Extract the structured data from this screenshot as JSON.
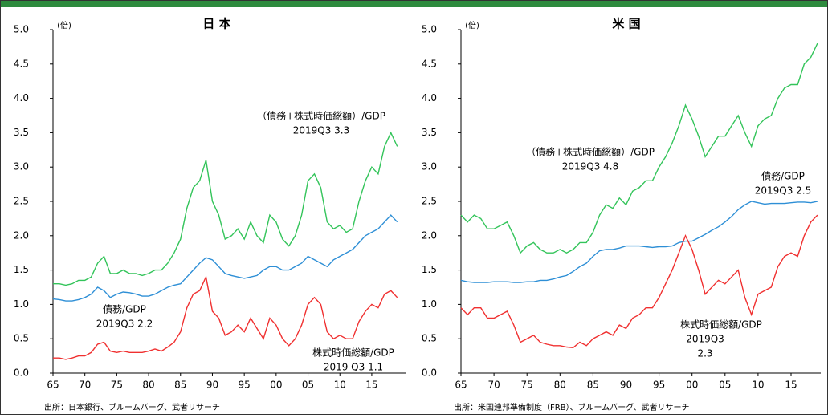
{
  "chart_data": [
    {
      "type": "line",
      "title": "日 本",
      "y_unit": "(倍)",
      "source": "出所：日本銀行、ブルームバーグ、武者リサーチ",
      "xlim": [
        1965,
        2020.3
      ],
      "ylim": [
        0,
        5
      ],
      "xticks": [
        {
          "value": 1965,
          "label": "65"
        },
        {
          "value": 1970,
          "label": "70"
        },
        {
          "value": 1975,
          "label": "75"
        },
        {
          "value": 1980,
          "label": "80"
        },
        {
          "value": 1985,
          "label": "85"
        },
        {
          "value": 1990,
          "label": "90"
        },
        {
          "value": 1995,
          "label": "95"
        },
        {
          "value": 2000,
          "label": "00"
        },
        {
          "value": 2005,
          "label": "05"
        },
        {
          "value": 2010,
          "label": "10"
        },
        {
          "value": 2015,
          "label": "15"
        }
      ],
      "yticks": [
        {
          "value": 0,
          "label": "0.0"
        },
        0.5,
        {
          "value": 1,
          "label": "1.0"
        },
        1.5,
        {
          "value": 2,
          "label": "2.0"
        },
        2.5,
        {
          "value": 3,
          "label": "3.0"
        },
        3.5,
        {
          "value": 4,
          "label": "4.0"
        },
        4.5,
        {
          "value": 5,
          "label": "5.0"
        }
      ],
      "x": [
        1965,
        1966,
        1967,
        1968,
        1969,
        1970,
        1971,
        1972,
        1973,
        1974,
        1975,
        1976,
        1977,
        1978,
        1979,
        1980,
        1981,
        1982,
        1983,
        1984,
        1985,
        1986,
        1987,
        1988,
        1989,
        1990,
        1991,
        1992,
        1993,
        1994,
        1995,
        1996,
        1997,
        1998,
        1999,
        2000,
        2001,
        2002,
        2003,
        2004,
        2005,
        2006,
        2007,
        2008,
        2009,
        2010,
        2011,
        2012,
        2013,
        2014,
        2015,
        2016,
        2017,
        2018,
        2019
      ],
      "series": [
        {
          "name": "（債務+株式時価総額）/GDP",
          "annotation": [
            "2019Q3  3.3"
          ],
          "color": "#33c45a",
          "values": [
            1.3,
            1.3,
            1.28,
            1.3,
            1.35,
            1.35,
            1.4,
            1.6,
            1.7,
            1.45,
            1.45,
            1.5,
            1.45,
            1.45,
            1.42,
            1.45,
            1.5,
            1.5,
            1.6,
            1.75,
            1.95,
            2.4,
            2.7,
            2.8,
            3.1,
            2.5,
            2.3,
            1.95,
            2.0,
            2.1,
            1.95,
            2.2,
            2.0,
            1.9,
            2.3,
            2.2,
            1.95,
            1.85,
            2.0,
            2.3,
            2.8,
            2.9,
            2.7,
            2.2,
            2.1,
            2.15,
            2.05,
            2.1,
            2.5,
            2.8,
            3.0,
            2.9,
            3.3,
            3.5,
            3.3
          ]
        },
        {
          "name": "債務/GDP",
          "annotation": [
            "2019Q3   2.2"
          ],
          "color": "#2e8fd6",
          "values": [
            1.08,
            1.07,
            1.05,
            1.05,
            1.07,
            1.1,
            1.15,
            1.25,
            1.2,
            1.1,
            1.15,
            1.18,
            1.17,
            1.15,
            1.12,
            1.12,
            1.15,
            1.2,
            1.25,
            1.28,
            1.3,
            1.4,
            1.5,
            1.6,
            1.68,
            1.65,
            1.55,
            1.45,
            1.42,
            1.4,
            1.38,
            1.4,
            1.42,
            1.5,
            1.55,
            1.55,
            1.5,
            1.5,
            1.55,
            1.6,
            1.7,
            1.65,
            1.6,
            1.55,
            1.65,
            1.7,
            1.75,
            1.8,
            1.9,
            2.0,
            2.05,
            2.1,
            2.2,
            2.3,
            2.2
          ]
        },
        {
          "name": "株式時価総額/GDP",
          "annotation": [
            "2019  Q3   1.1"
          ],
          "color": "#f03030",
          "values": [
            0.22,
            0.22,
            0.2,
            0.22,
            0.25,
            0.25,
            0.3,
            0.42,
            0.45,
            0.32,
            0.3,
            0.32,
            0.3,
            0.3,
            0.3,
            0.32,
            0.35,
            0.32,
            0.38,
            0.45,
            0.6,
            0.95,
            1.15,
            1.2,
            1.4,
            0.9,
            0.8,
            0.55,
            0.6,
            0.7,
            0.6,
            0.8,
            0.65,
            0.5,
            0.8,
            0.7,
            0.5,
            0.4,
            0.5,
            0.7,
            1.0,
            1.1,
            1.0,
            0.6,
            0.5,
            0.55,
            0.5,
            0.5,
            0.75,
            0.9,
            1.0,
            0.95,
            1.15,
            1.2,
            1.1
          ]
        }
      ]
    },
    {
      "type": "line",
      "title": "米 国",
      "y_unit": "(倍)",
      "source": "出所：米国連邦準備制度（FRB）、ブルームバーグ、武者リサーチ",
      "xlim": [
        1965,
        2019.5
      ],
      "ylim": [
        0,
        5
      ],
      "xticks": [
        {
          "value": 1965,
          "label": "65"
        },
        {
          "value": 1970,
          "label": "70"
        },
        {
          "value": 1975,
          "label": "75"
        },
        {
          "value": 1980,
          "label": "80"
        },
        {
          "value": 1985,
          "label": "85"
        },
        {
          "value": 1990,
          "label": "90"
        },
        {
          "value": 1995,
          "label": "95"
        },
        {
          "value": 2000,
          "label": "00"
        },
        {
          "value": 2005,
          "label": "05"
        },
        {
          "value": 2010,
          "label": "10"
        },
        {
          "value": 2015,
          "label": "15"
        }
      ],
      "yticks": [
        {
          "value": 0,
          "label": "0.0"
        },
        0.5,
        {
          "value": 1,
          "label": "1.0"
        },
        1.5,
        {
          "value": 2,
          "label": "2.0"
        },
        2.5,
        {
          "value": 3,
          "label": "3.0"
        },
        3.5,
        {
          "value": 4,
          "label": "4.0"
        },
        4.5,
        {
          "value": 5,
          "label": "5.0"
        }
      ],
      "x": [
        1965,
        1966,
        1967,
        1968,
        1969,
        1970,
        1971,
        1972,
        1973,
        1974,
        1975,
        1976,
        1977,
        1978,
        1979,
        1980,
        1981,
        1982,
        1983,
        1984,
        1985,
        1986,
        1987,
        1988,
        1989,
        1990,
        1991,
        1992,
        1993,
        1994,
        1995,
        1996,
        1997,
        1998,
        1999,
        2000,
        2001,
        2002,
        2003,
        2004,
        2005,
        2006,
        2007,
        2008,
        2009,
        2010,
        2011,
        2012,
        2013,
        2014,
        2015,
        2016,
        2017,
        2018,
        2019
      ],
      "series": [
        {
          "name": "（債務+株式時価総額）/GDP",
          "annotation": [
            "2019Q3  4.8"
          ],
          "color": "#33c45a",
          "values": [
            2.3,
            2.2,
            2.3,
            2.25,
            2.1,
            2.1,
            2.15,
            2.2,
            2.0,
            1.75,
            1.85,
            1.9,
            1.8,
            1.75,
            1.75,
            1.8,
            1.75,
            1.8,
            1.9,
            1.9,
            2.05,
            2.3,
            2.45,
            2.4,
            2.55,
            2.45,
            2.65,
            2.7,
            2.8,
            2.8,
            3.0,
            3.15,
            3.35,
            3.6,
            3.9,
            3.7,
            3.45,
            3.15,
            3.3,
            3.45,
            3.45,
            3.6,
            3.75,
            3.5,
            3.3,
            3.6,
            3.7,
            3.75,
            4.0,
            4.15,
            4.2,
            4.2,
            4.5,
            4.6,
            4.8
          ]
        },
        {
          "name": "債務/GDP",
          "annotation": [
            "2019Q3  2.5"
          ],
          "color": "#2e8fd6",
          "values": [
            1.35,
            1.33,
            1.32,
            1.32,
            1.32,
            1.33,
            1.33,
            1.33,
            1.32,
            1.32,
            1.33,
            1.33,
            1.35,
            1.35,
            1.37,
            1.4,
            1.42,
            1.48,
            1.55,
            1.6,
            1.7,
            1.78,
            1.8,
            1.8,
            1.82,
            1.85,
            1.85,
            1.85,
            1.84,
            1.83,
            1.84,
            1.84,
            1.85,
            1.9,
            1.92,
            1.92,
            1.97,
            2.02,
            2.08,
            2.13,
            2.2,
            2.28,
            2.38,
            2.45,
            2.5,
            2.48,
            2.46,
            2.47,
            2.47,
            2.47,
            2.48,
            2.49,
            2.49,
            2.48,
            2.5
          ]
        },
        {
          "name": "株式時価総額/GDP",
          "annotation": [
            "2019Q3",
            "2.3"
          ],
          "color": "#f03030",
          "values": [
            0.95,
            0.85,
            0.95,
            0.95,
            0.8,
            0.8,
            0.85,
            0.9,
            0.7,
            0.45,
            0.5,
            0.55,
            0.45,
            0.42,
            0.4,
            0.4,
            0.38,
            0.37,
            0.45,
            0.4,
            0.5,
            0.55,
            0.6,
            0.55,
            0.7,
            0.65,
            0.8,
            0.85,
            0.95,
            0.95,
            1.1,
            1.3,
            1.5,
            1.75,
            2.0,
            1.8,
            1.5,
            1.15,
            1.25,
            1.35,
            1.3,
            1.4,
            1.5,
            1.1,
            0.85,
            1.15,
            1.2,
            1.25,
            1.55,
            1.7,
            1.75,
            1.7,
            2.0,
            2.2,
            2.3
          ]
        }
      ]
    }
  ]
}
